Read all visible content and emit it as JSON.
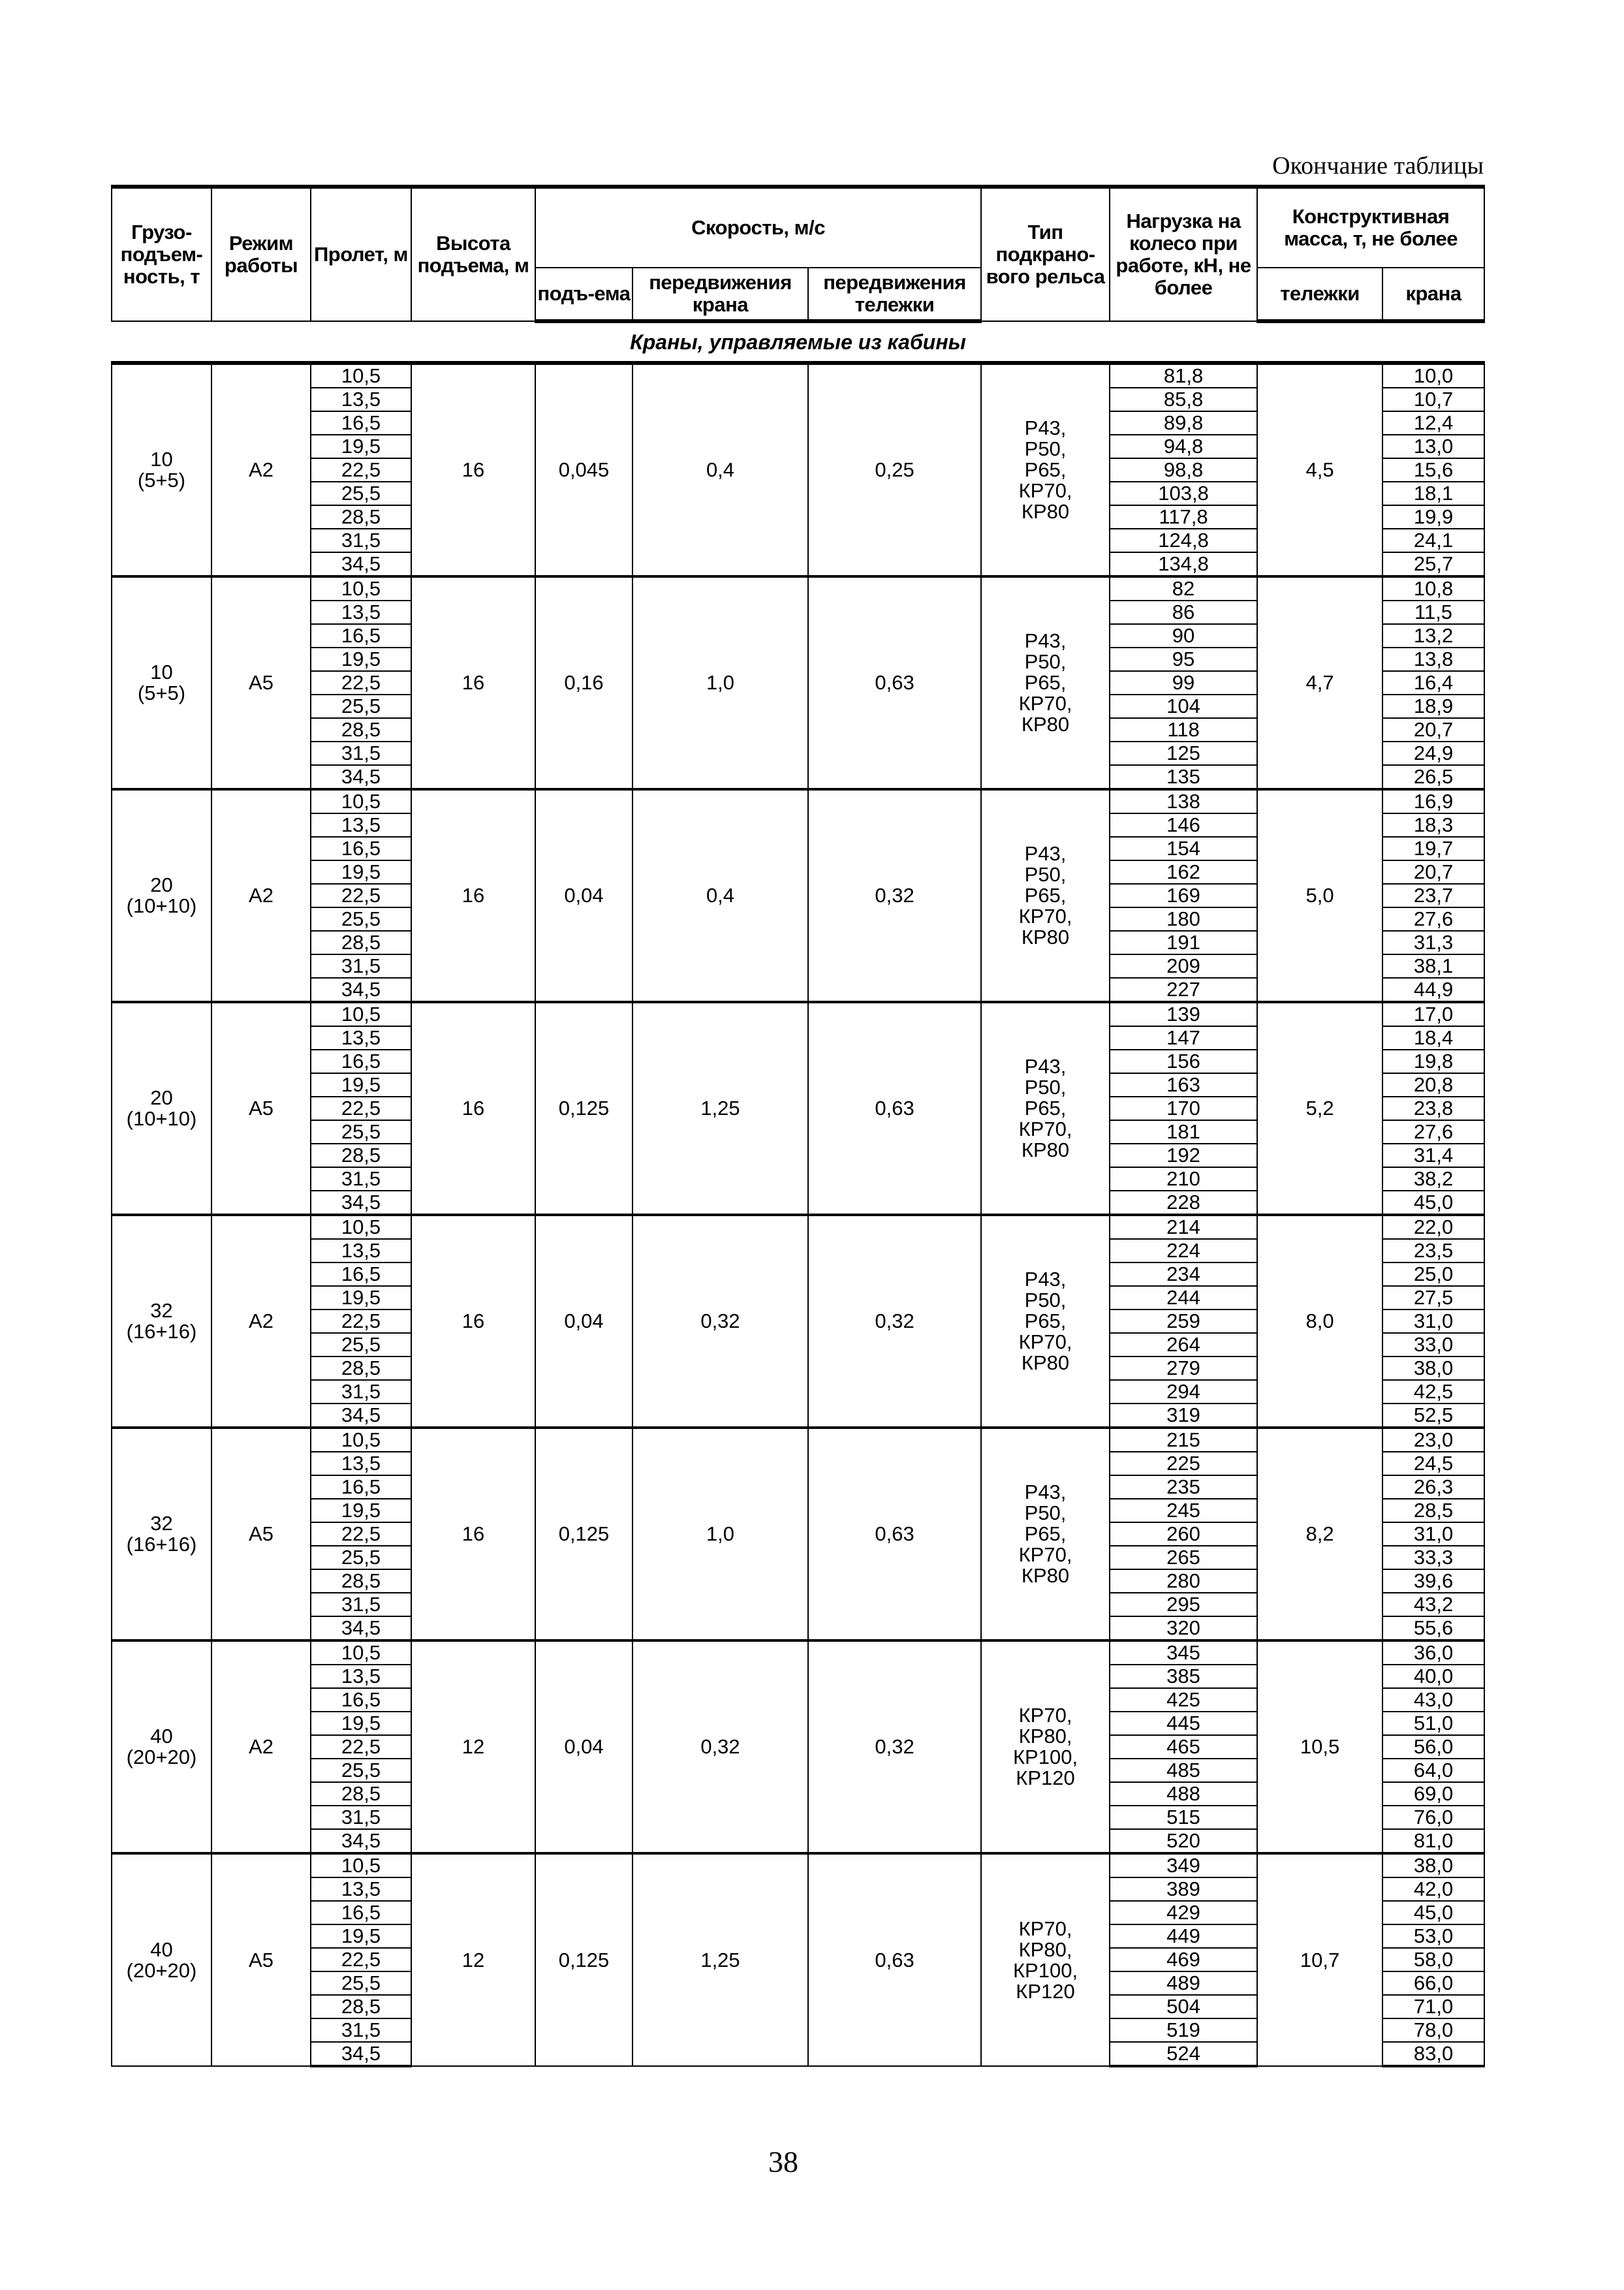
{
  "caption": "Окончание таблицы",
  "header": {
    "capacity": "Грузо-подъем-ность, т",
    "mode": "Режим работы",
    "span": "Пролет, м",
    "height": "Высота подъема, м",
    "speed": "Скорость, м/с",
    "speed_lift": "подъ-ема",
    "speed_crane": "передвижения крана",
    "speed_trolley": "передвижения тележки",
    "rail": "Тип подкрано-вого рельса",
    "load": "Нагрузка на колесо при работе, кН, не более",
    "mass": "Конструктивная масса, т, не более",
    "mass_trolley": "тележки",
    "mass_crane": "крана"
  },
  "section_title": "Краны, управляемые из кабины",
  "spans": [
    "10,5",
    "13,5",
    "16,5",
    "19,5",
    "22,5",
    "25,5",
    "28,5",
    "31,5",
    "34,5"
  ],
  "groups": [
    {
      "capacity": "10\n(5+5)",
      "mode": "A2",
      "height": "16",
      "v_lift": "0,045",
      "v_crane": "0,4",
      "v_trolley": "0,25",
      "rail": "Р43,\nР50,\nР65,\nКР70,\nКР80",
      "mass_trolley": "4,5",
      "loads": [
        "81,8",
        "85,8",
        "89,8",
        "94,8",
        "98,8",
        "103,8",
        "117,8",
        "124,8",
        "134,8"
      ],
      "mass_crane": [
        "10,0",
        "10,7",
        "12,4",
        "13,0",
        "15,6",
        "18,1",
        "19,9",
        "24,1",
        "25,7"
      ]
    },
    {
      "capacity": "10\n(5+5)",
      "mode": "A5",
      "height": "16",
      "v_lift": "0,16",
      "v_crane": "1,0",
      "v_trolley": "0,63",
      "rail": "Р43,\nР50,\nР65,\nКР70,\nКР80",
      "mass_trolley": "4,7",
      "loads": [
        "82",
        "86",
        "90",
        "95",
        "99",
        "104",
        "118",
        "125",
        "135"
      ],
      "mass_crane": [
        "10,8",
        "11,5",
        "13,2",
        "13,8",
        "16,4",
        "18,9",
        "20,7",
        "24,9",
        "26,5"
      ]
    },
    {
      "capacity": "20\n(10+10)",
      "mode": "A2",
      "height": "16",
      "v_lift": "0,04",
      "v_crane": "0,4",
      "v_trolley": "0,32",
      "rail": "Р43,\nР50,\nР65,\nКР70,\nКР80",
      "mass_trolley": "5,0",
      "loads": [
        "138",
        "146",
        "154",
        "162",
        "169",
        "180",
        "191",
        "209",
        "227"
      ],
      "mass_crane": [
        "16,9",
        "18,3",
        "19,7",
        "20,7",
        "23,7",
        "27,6",
        "31,3",
        "38,1",
        "44,9"
      ]
    },
    {
      "capacity": "20\n(10+10)",
      "mode": "A5",
      "height": "16",
      "v_lift": "0,125",
      "v_crane": "1,25",
      "v_trolley": "0,63",
      "rail": "Р43,\nР50,\nР65,\nКР70,\nКР80",
      "mass_trolley": "5,2",
      "loads": [
        "139",
        "147",
        "156",
        "163",
        "170",
        "181",
        "192",
        "210",
        "228"
      ],
      "mass_crane": [
        "17,0",
        "18,4",
        "19,8",
        "20,8",
        "23,8",
        "27,6",
        "31,4",
        "38,2",
        "45,0"
      ]
    },
    {
      "capacity": "32\n(16+16)",
      "mode": "A2",
      "height": "16",
      "v_lift": "0,04",
      "v_crane": "0,32",
      "v_trolley": "0,32",
      "rail": "Р43,\nР50,\nР65,\nКР70,\nКР80",
      "mass_trolley": "8,0",
      "loads": [
        "214",
        "224",
        "234",
        "244",
        "259",
        "264",
        "279",
        "294",
        "319"
      ],
      "mass_crane": [
        "22,0",
        "23,5",
        "25,0",
        "27,5",
        "31,0",
        "33,0",
        "38,0",
        "42,5",
        "52,5"
      ]
    },
    {
      "capacity": "32\n(16+16)",
      "mode": "A5",
      "height": "16",
      "v_lift": "0,125",
      "v_crane": "1,0",
      "v_trolley": "0,63",
      "rail": "Р43,\nР50,\nР65,\nКР70,\nКР80",
      "mass_trolley": "8,2",
      "loads": [
        "215",
        "225",
        "235",
        "245",
        "260",
        "265",
        "280",
        "295",
        "320"
      ],
      "mass_crane": [
        "23,0",
        "24,5",
        "26,3",
        "28,5",
        "31,0",
        "33,3",
        "39,6",
        "43,2",
        "55,6"
      ]
    },
    {
      "capacity": "40\n(20+20)",
      "mode": "A2",
      "height": "12",
      "v_lift": "0,04",
      "v_crane": "0,32",
      "v_trolley": "0,32",
      "rail": "КР70,\nКР80,\nКР100,\nКР120",
      "mass_trolley": "10,5",
      "loads": [
        "345",
        "385",
        "425",
        "445",
        "465",
        "485",
        "488",
        "515",
        "520"
      ],
      "mass_crane": [
        "36,0",
        "40,0",
        "43,0",
        "51,0",
        "56,0",
        "64,0",
        "69,0",
        "76,0",
        "81,0"
      ]
    },
    {
      "capacity": "40\n(20+20)",
      "mode": "A5",
      "height": "12",
      "v_lift": "0,125",
      "v_crane": "1,25",
      "v_trolley": "0,63",
      "rail": "КР70,\nКР80,\nКР100,\nКР120",
      "mass_trolley": "10,7",
      "loads": [
        "349",
        "389",
        "429",
        "449",
        "469",
        "489",
        "504",
        "519",
        "524"
      ],
      "mass_crane": [
        "38,0",
        "42,0",
        "45,0",
        "53,0",
        "58,0",
        "66,0",
        "71,0",
        "78,0",
        "83,0"
      ]
    }
  ],
  "page_number": "38"
}
